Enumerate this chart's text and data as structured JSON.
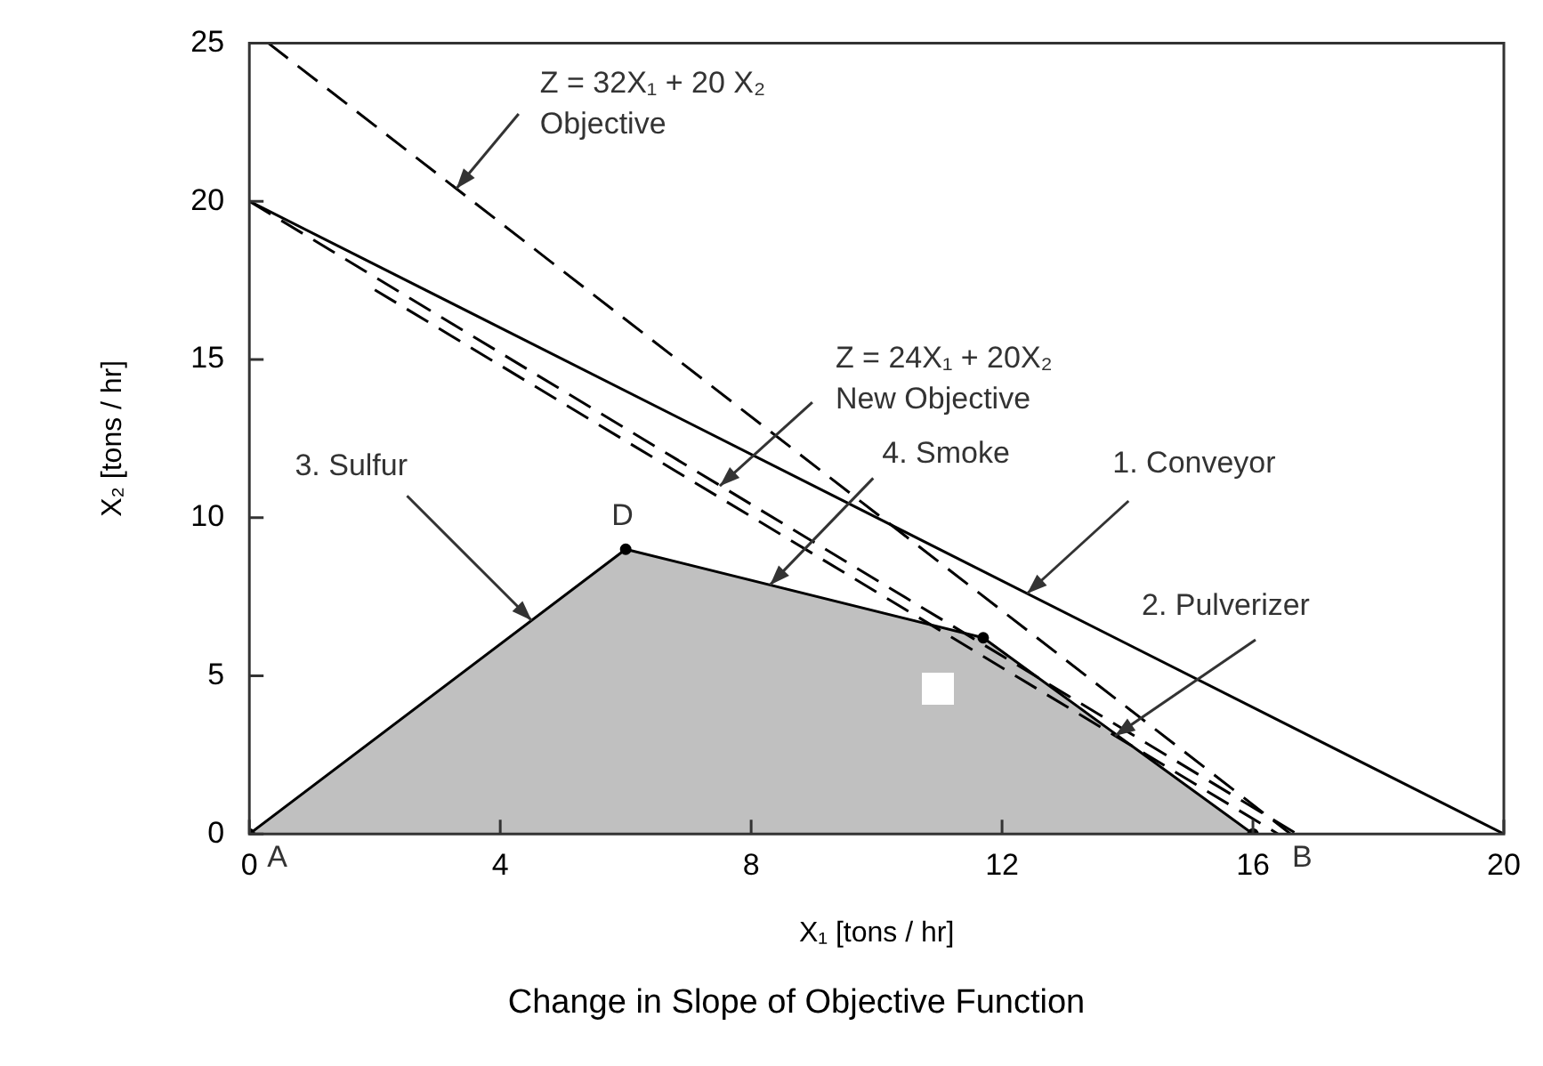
{
  "chart_data": {
    "type": "line",
    "title": "Change in Slope of Objective Function",
    "xlabel": "X₁ [tons / hr]",
    "ylabel": "X₂ [tons / hr]",
    "xlim": [
      0,
      20
    ],
    "ylim": [
      0,
      25
    ],
    "xticks": [
      0,
      4,
      8,
      12,
      16,
      20
    ],
    "yticks": [
      0,
      5,
      10,
      15,
      20,
      25
    ],
    "grid": false,
    "legend": false,
    "series": [
      {
        "type": "area",
        "color": "#c0c0c0",
        "x": [
          0,
          6,
          11.7,
          16
        ],
        "values": [
          0,
          9,
          6.2,
          0
        ],
        "marker": "circle"
      },
      {
        "type": "line",
        "color": "#000000",
        "x": [
          0,
          20
        ],
        "values": [
          20,
          0
        ],
        "line_style": "solid"
      },
      {
        "type": "line",
        "color": "#000000",
        "x": [
          0,
          16.7
        ],
        "values": [
          20,
          0
        ],
        "line_style": "dashed"
      },
      {
        "type": "line",
        "color": "#000000",
        "x": [
          2,
          16.4
        ],
        "values": [
          17.2,
          0
        ],
        "line_style": "dashed"
      },
      {
        "type": "line",
        "color": "#000000",
        "x": [
          0.3,
          16.6
        ],
        "values": [
          25,
          0
        ],
        "line_style": "dashed"
      }
    ],
    "annotations": [
      {
        "text": "Z = 32X₁ + 20 X₂\nObjective",
        "x": 3.3,
        "y": 20.4
      },
      {
        "text": "Z = 24X₁ + 20X₂\nNew Objective",
        "x": 7.5,
        "y": 11
      },
      {
        "text": "3. Sulfur",
        "x": 4.5,
        "y": 6.75
      },
      {
        "text": "4. Smoke",
        "x": 8.3,
        "y": 7.87
      },
      {
        "text": "1. Conveyor",
        "x": 12.4,
        "y": 7.6
      },
      {
        "text": "2. Pulverizer",
        "x": 13.8,
        "y": 3.1
      },
      {
        "text": "D",
        "x": 6,
        "y": 9
      },
      {
        "text": "A",
        "x": 0,
        "y": 0
      },
      {
        "text": "B",
        "x": 16,
        "y": 0
      }
    ]
  }
}
